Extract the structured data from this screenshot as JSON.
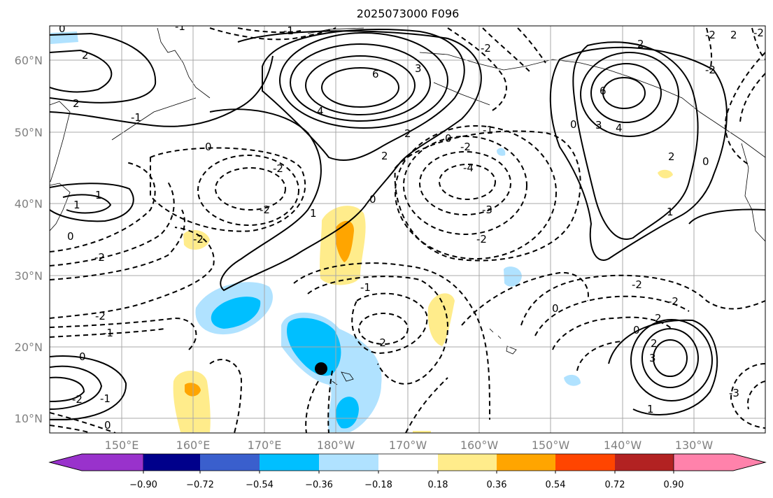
{
  "title": "2025073000 F096",
  "lat_labels": [
    "60°N",
    "50°N",
    "40°N",
    "30°N",
    "20°N",
    "10°N"
  ],
  "lon_labels": [
    "150°E",
    "160°E",
    "170°E",
    "180°W",
    "170°W",
    "160°W",
    "150°W",
    "140°W",
    "130°W"
  ],
  "colorbar": {
    "tick_labels": [
      "−0.90",
      "−0.72",
      "−0.54",
      "−0.36",
      "−0.18",
      "0.18",
      "0.36",
      "0.54",
      "0.72",
      "0.90"
    ],
    "colors": [
      "#9932cc",
      "#00008b",
      "#3a5fcd",
      "#00bfff",
      "#b0e2ff",
      "#ffffff",
      "#ffec8b",
      "#ffa500",
      "#ff4500",
      "#b22222",
      "#ff82ab"
    ]
  },
  "contour_labels": [
    "6",
    "3",
    "4",
    "2",
    "2",
    "1",
    "-1",
    "2",
    "2",
    "0",
    "-2",
    "0",
    "-2",
    "-4",
    "-3",
    "-2",
    "1",
    "0",
    "-2",
    "-1",
    "-2",
    "0",
    "-2",
    "-1",
    "0",
    "-1",
    "-2",
    "0",
    "-1",
    "0",
    "-2",
    "-1",
    "-2",
    "0",
    "3",
    "4",
    "6",
    "2",
    "0",
    "2",
    "1",
    "-2",
    "-2",
    "2",
    "0",
    "3",
    "2",
    "1",
    "-2",
    "-3",
    "-2",
    "-2",
    "1",
    "-1",
    "0",
    "2",
    "-2"
  ],
  "marker": {
    "type": "storm-center",
    "color": "#000000"
  }
}
